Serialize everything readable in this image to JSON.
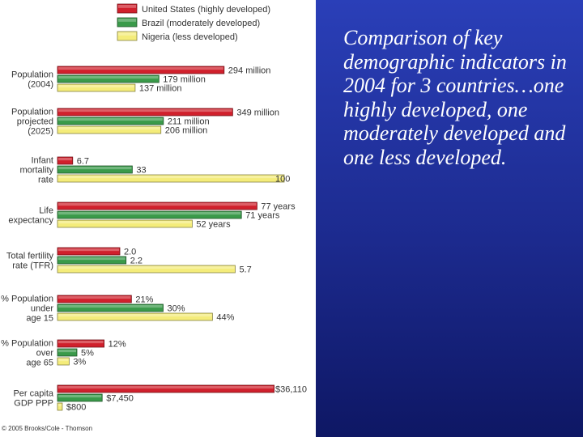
{
  "caption": "Comparison of key demographic indicators in 2004 for 3 countries…one highly developed, one moderately developed and one less developed.",
  "copyright": "© 2005 Brooks/Cole - Thomson",
  "colors": {
    "red": "#d0202c",
    "green": "#3a9a4a",
    "yellow": "#f4ec7a",
    "slide_bg": "#1c2a8e"
  },
  "chart_data": {
    "type": "bar",
    "orientation": "horizontal",
    "series": [
      {
        "name": "United States (highly developed)",
        "color": "red"
      },
      {
        "name": "Brazil (moderately developed)",
        "color": "green"
      },
      {
        "name": "Nigeria (less developed)",
        "color": "yellow"
      }
    ],
    "categories": [
      {
        "label_lines": [
          "Population",
          "(2004)"
        ],
        "values": [
          294,
          179,
          137
        ],
        "labels": [
          "294 million",
          "179 million",
          "137 million"
        ]
      },
      {
        "label_lines": [
          "Population",
          "projected",
          "(2025)"
        ],
        "values": [
          349,
          211,
          206
        ],
        "labels": [
          "349 million",
          "211 million",
          "206 million"
        ]
      },
      {
        "label_lines": [
          "Infant",
          "mortality",
          "rate"
        ],
        "values": [
          6.7,
          33,
          100
        ],
        "labels": [
          "6.7",
          "33",
          "100"
        ]
      },
      {
        "label_lines": [
          "Life",
          "expectancy"
        ],
        "values": [
          77,
          71,
          52
        ],
        "labels": [
          "77 years",
          "71 years",
          "52 years"
        ]
      },
      {
        "label_lines": [
          "Total fertility",
          "rate (TFR)"
        ],
        "values": [
          2.0,
          2.2,
          5.7
        ],
        "labels": [
          "2.0",
          "2.2",
          "5.7"
        ]
      },
      {
        "label_lines": [
          "% Population",
          "under",
          "age 15"
        ],
        "values": [
          21,
          30,
          44
        ],
        "labels": [
          "21%",
          "30%",
          "44%"
        ]
      },
      {
        "label_lines": [
          "% Population",
          "over",
          "age 65"
        ],
        "values": [
          12,
          5,
          3
        ],
        "labels": [
          "12%",
          "5%",
          "3%"
        ]
      },
      {
        "label_lines": [
          "Per capita",
          "GDP PPP"
        ],
        "values": [
          36110,
          7450,
          800
        ],
        "labels": [
          "$36,110",
          "$7,450",
          "$800"
        ]
      }
    ],
    "grid": false,
    "legend": "top"
  }
}
